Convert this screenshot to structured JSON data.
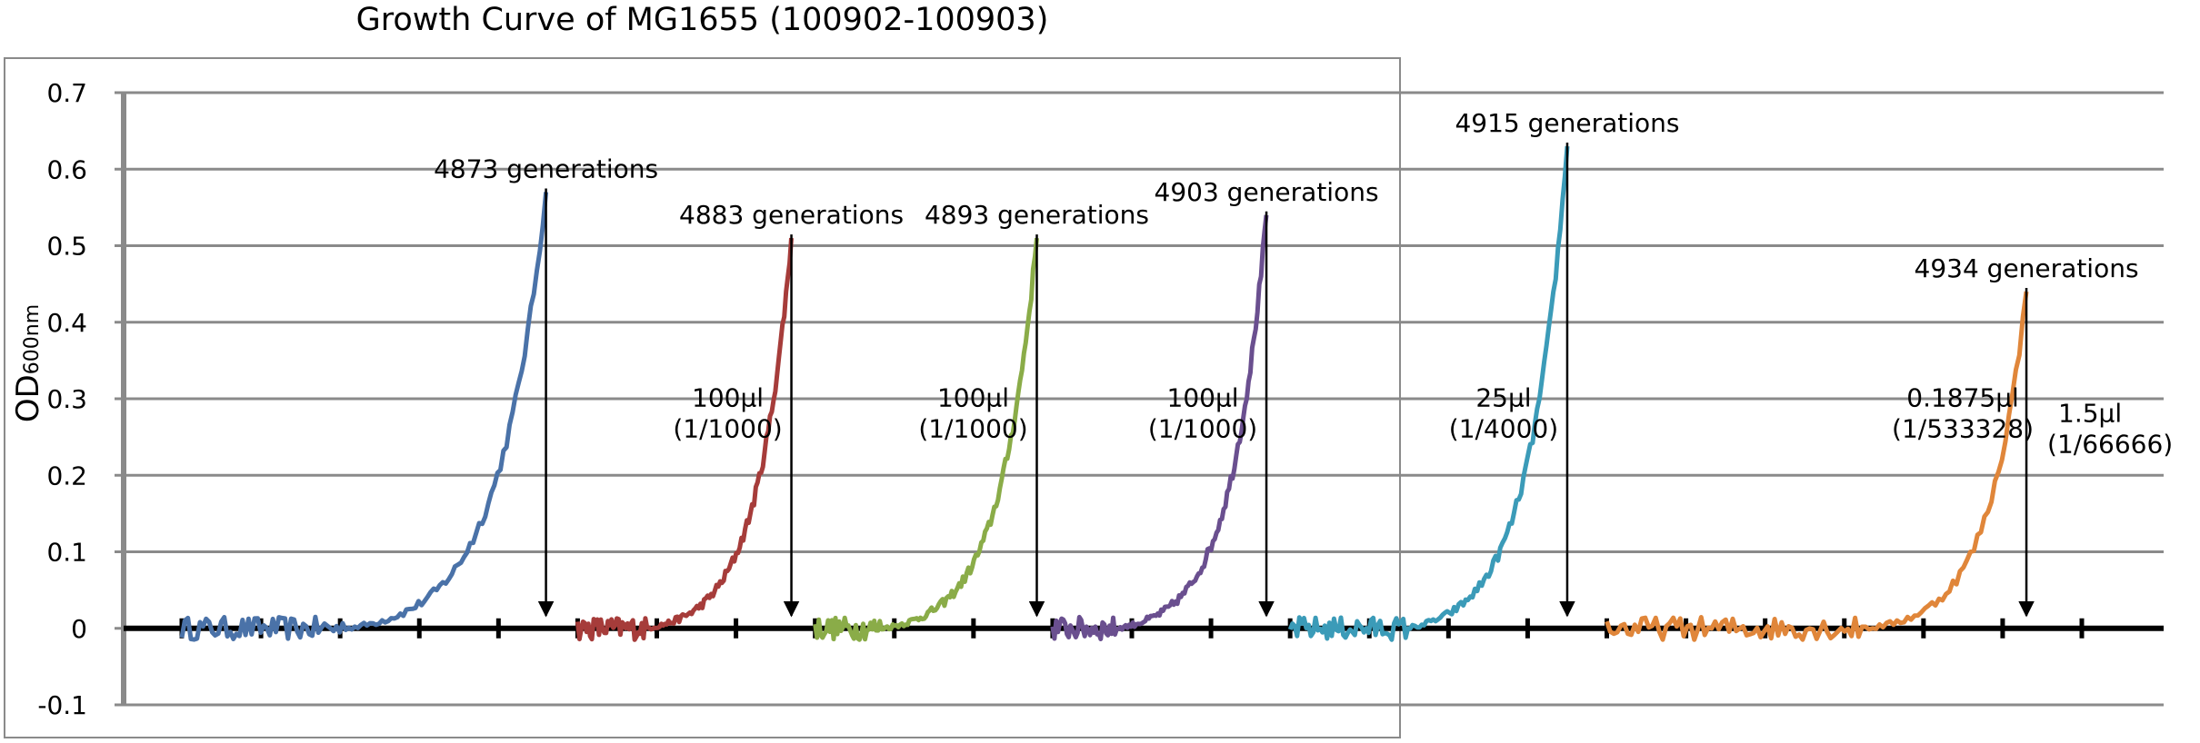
{
  "chart_data": {
    "type": "line",
    "title": "Growth Curve of MG1655 (100902-100903)",
    "ylabel_main": "OD",
    "ylabel_sub": "600nm",
    "ylim": [
      -0.1,
      0.7
    ],
    "yticks": [
      "0.7",
      "0.6",
      "0.5",
      "0.4",
      "0.3",
      "0.2",
      "0.1",
      "0",
      "-0.1"
    ],
    "grid": true,
    "legend": "none",
    "xlim": [
      0,
      24
    ],
    "series": [
      {
        "color": "#4a72a8",
        "start": 0.0,
        "end": 4.6,
        "lag": 0.45,
        "peak": 0.57
      },
      {
        "color": "#a63c3a",
        "start": 5.0,
        "end": 7.7,
        "lag": 0.32,
        "peak": 0.51
      },
      {
        "color": "#8aac48",
        "start": 8.0,
        "end": 10.8,
        "lag": 0.3,
        "peak": 0.51
      },
      {
        "color": "#6a4f8f",
        "start": 11.0,
        "end": 13.7,
        "lag": 0.3,
        "peak": 0.54
      },
      {
        "color": "#3b9bb8",
        "start": 14.0,
        "end": 17.5,
        "lag": 0.42,
        "peak": 0.63
      },
      {
        "color": "#e0863a",
        "start": 18.0,
        "end": 23.3,
        "lag": 0.62,
        "peak": 0.44
      }
    ],
    "annotations": [
      {
        "generation_label": "4873 generations",
        "x": 4.6,
        "peak": 0.57,
        "transfer_volume": "",
        "dilution": ""
      },
      {
        "generation_label": "4883 generations",
        "x": 7.7,
        "peak": 0.51,
        "transfer_volume": "100μl",
        "dilution": "(1/1000)"
      },
      {
        "generation_label": "4893 generations",
        "x": 10.8,
        "peak": 0.51,
        "transfer_volume": "100μl",
        "dilution": "(1/1000)"
      },
      {
        "generation_label": "4903 generations",
        "x": 13.7,
        "peak": 0.54,
        "transfer_volume": "100μl",
        "dilution": "(1/1000)"
      },
      {
        "generation_label": "4915 generations",
        "x": 17.5,
        "peak": 0.63,
        "transfer_volume": "25μl",
        "dilution": "(1/4000)"
      },
      {
        "generation_label": "4934 generations",
        "x": 23.3,
        "peak": 0.44,
        "transfer_volume": "0.1875μl",
        "dilution": "(1/533328)"
      }
    ],
    "trailing_note": {
      "transfer_volume": "1.5μl",
      "dilution": "(1/66666)"
    }
  }
}
